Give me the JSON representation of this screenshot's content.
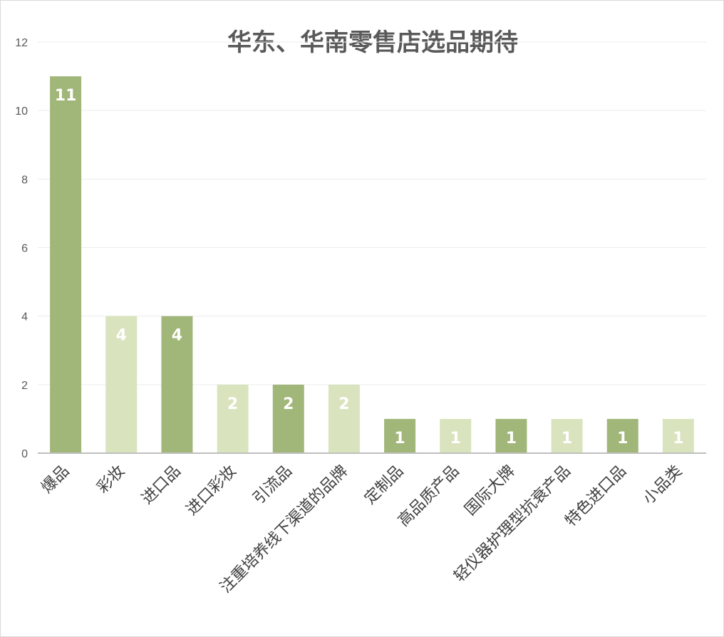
{
  "chart_data": {
    "type": "bar",
    "title": "华东、华南零售店选品期待",
    "xlabel": "",
    "ylabel": "",
    "ylim": [
      0,
      12
    ],
    "yticks": [
      0,
      2,
      4,
      6,
      8,
      10,
      12
    ],
    "grid": true,
    "legend": "none",
    "categories": [
      "爆品",
      "彩妆",
      "进口品",
      "进口彩妆",
      "引流品",
      "注重培养线下渠道的品牌",
      "定制品",
      "高品质产品",
      "国际大牌",
      "轻仪器护理型抗衰产品",
      "特色进口品",
      "小品类"
    ],
    "values": [
      11,
      4,
      4,
      2,
      2,
      2,
      1,
      1,
      1,
      1,
      1,
      1
    ],
    "data_labels": [
      "11",
      "4",
      "4",
      "2",
      "2",
      "2",
      "1",
      "1",
      "1",
      "1",
      "1",
      "1"
    ],
    "colors": [
      "#a1b679",
      "#d9e4be",
      "#a1b679",
      "#d9e4be",
      "#a1b679",
      "#d9e4be",
      "#a1b679",
      "#d9e4be",
      "#a1b679",
      "#d9e4be",
      "#a1b679",
      "#d9e4be"
    ]
  }
}
